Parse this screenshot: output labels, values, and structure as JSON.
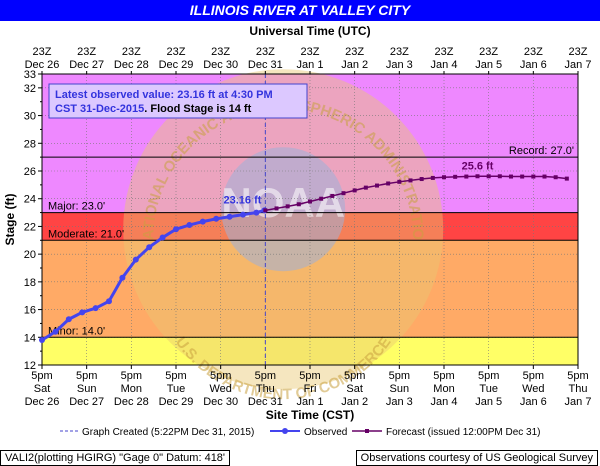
{
  "colors": {
    "title_bg": "#0000ff",
    "record_zone": "#ee88ff",
    "major_zone": "#ff4444",
    "moderate_zone": "#ffaa66",
    "minor_zone": "#ffff66",
    "below_zone": "#ffffff",
    "observed": "#4444ee",
    "forecast": "#660066"
  },
  "chart_data": {
    "type": "line",
    "title": "ILLINOIS RIVER AT VALLEY CITY",
    "top_axis_title": "Universal Time (UTC)",
    "xlabel": "Site Time (CST)",
    "ylabel": "Stage (ft)",
    "ylim": [
      12,
      33
    ],
    "y_ticks": [
      12,
      14,
      16,
      18,
      20,
      22,
      24,
      26,
      28,
      30,
      32,
      33
    ],
    "x_range_days": [
      0,
      12
    ],
    "bottom_ticks": [
      {
        "time": "5pm",
        "day": "Sat",
        "date": "Dec 26"
      },
      {
        "time": "5pm",
        "day": "Sun",
        "date": "Dec 27"
      },
      {
        "time": "5pm",
        "day": "Mon",
        "date": "Dec 28"
      },
      {
        "time": "5pm",
        "day": "Tue",
        "date": "Dec 29"
      },
      {
        "time": "5pm",
        "day": "Wed",
        "date": "Dec 30"
      },
      {
        "time": "5pm",
        "day": "Thu",
        "date": "Dec 31"
      },
      {
        "time": "5pm",
        "day": "Fri",
        "date": "Jan 1"
      },
      {
        "time": "5pm",
        "day": "Sat",
        "date": "Jan 2"
      },
      {
        "time": "5pm",
        "day": "Sun",
        "date": "Jan 3"
      },
      {
        "time": "5pm",
        "day": "Mon",
        "date": "Jan 4"
      },
      {
        "time": "5pm",
        "day": "Tue",
        "date": "Jan 5"
      },
      {
        "time": "5pm",
        "day": "Wed",
        "date": "Jan 6"
      },
      {
        "time": "5pm",
        "day": "Thu",
        "date": "Jan 7"
      }
    ],
    "top_ticks": [
      {
        "time": "23Z",
        "date": "Dec 26"
      },
      {
        "time": "23Z",
        "date": "Dec 27"
      },
      {
        "time": "23Z",
        "date": "Dec 28"
      },
      {
        "time": "23Z",
        "date": "Dec 29"
      },
      {
        "time": "23Z",
        "date": "Dec 30"
      },
      {
        "time": "23Z",
        "date": "Dec 31"
      },
      {
        "time": "23Z",
        "date": "Jan 1"
      },
      {
        "time": "23Z",
        "date": "Jan 2"
      },
      {
        "time": "23Z",
        "date": "Jan 3"
      },
      {
        "time": "23Z",
        "date": "Jan 4"
      },
      {
        "time": "23Z",
        "date": "Jan 5"
      },
      {
        "time": "23Z",
        "date": "Jan 6"
      },
      {
        "time": "23Z",
        "date": "Jan 7"
      }
    ],
    "flood_categories": [
      {
        "label": "Record: 27.0'",
        "stage": 27.0
      },
      {
        "label": "Major: 23.0'",
        "stage": 23.0
      },
      {
        "label": "Moderate: 21.0'",
        "stage": 21.0
      },
      {
        "label": "Minor: 14.0'",
        "stage": 14.0
      }
    ],
    "graph_created_day": 5.0,
    "observed": {
      "x_days": [
        0,
        0.3,
        0.6,
        0.9,
        1.2,
        1.5,
        1.8,
        2.1,
        2.4,
        2.7,
        3.0,
        3.3,
        3.6,
        3.9,
        4.2,
        4.5,
        4.8,
        4.98
      ],
      "y": [
        13.8,
        14.4,
        15.3,
        15.8,
        16.1,
        16.6,
        18.3,
        19.6,
        20.5,
        21.2,
        21.8,
        22.1,
        22.35,
        22.55,
        22.7,
        22.85,
        23.0,
        23.16
      ]
    },
    "forecast": {
      "x_days": [
        5.0,
        5.25,
        5.5,
        5.75,
        6.0,
        6.25,
        6.5,
        6.75,
        7.0,
        7.25,
        7.5,
        7.75,
        8.0,
        8.25,
        8.5,
        8.75,
        9.0,
        9.25,
        9.5,
        9.75,
        10.0,
        10.25,
        10.5,
        10.75,
        11.0,
        11.25,
        11.5,
        11.75
      ],
      "y": [
        23.16,
        23.3,
        23.45,
        23.6,
        23.8,
        24.0,
        24.2,
        24.4,
        24.6,
        24.8,
        24.95,
        25.1,
        25.22,
        25.32,
        25.42,
        25.5,
        25.55,
        25.58,
        25.6,
        25.62,
        25.62,
        25.62,
        25.6,
        25.6,
        25.6,
        25.6,
        25.55,
        25.45
      ]
    },
    "annotations": {
      "latest_line1": "Latest observed value: 23.16 ft at 4:30 PM",
      "latest_date": "CST 31-Dec-2015",
      "flood_stage": ".  Flood Stage is 14 ft",
      "observed_label": "23.16 ft",
      "forecast_label": "25.6 ft"
    },
    "legend": {
      "position": "bottom",
      "graph_created": "Graph Created (5:22PM Dec 31, 2015)",
      "observed": "Observed",
      "forecast": "Forecast (issued 12:00PM Dec 31)"
    },
    "watermark": {
      "arc_text": "NATIONAL OCEANIC AND ATMOSPHERIC ADMINISTRATION",
      "bottom_text": "U.S. DEPARTMENT OF COMMERCE",
      "center_text": "NOAA"
    }
  },
  "footer": {
    "left": "VALI2(plotting HGIRG) \"Gage 0\" Datum: 418'",
    "right": "Observations courtesy of US Geological Survey"
  }
}
